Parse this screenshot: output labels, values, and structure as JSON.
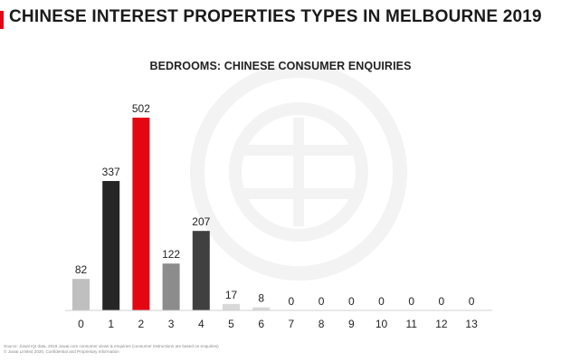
{
  "page": {
    "title": "CHINESE INTEREST PROPERTIES TYPES IN MELBOURNE 2019",
    "accent_color": "#e30613"
  },
  "footer": {
    "source": "Source: Juwai IQI data, 2019 Juwai.com consumer views & enquiries (consumer instructions are based on enquiries)",
    "copyright": "© Juwai Limited 2020. Confidential and Proprietary Information"
  },
  "watermark": {
    "icon": "juwai-logo-watermark"
  },
  "chart_data": {
    "type": "bar",
    "title": "BEDROOMS: CHINESE CONSUMER ENQUIRIES",
    "xlabel": "",
    "ylabel": "",
    "categories": [
      "0",
      "1",
      "2",
      "3",
      "4",
      "5",
      "6",
      "7",
      "8",
      "9",
      "10",
      "11",
      "12",
      "13"
    ],
    "values": [
      82,
      337,
      502,
      122,
      207,
      17,
      8,
      0,
      0,
      0,
      0,
      0,
      0,
      0
    ],
    "colors": [
      "#bfbfbf",
      "#262626",
      "#e30613",
      "#8c8c8c",
      "#404040",
      "#d9d9d9",
      "#d9d9d9",
      "#d9d9d9",
      "#d9d9d9",
      "#d9d9d9",
      "#d9d9d9",
      "#d9d9d9",
      "#d9d9d9",
      "#d9d9d9"
    ],
    "ylim": [
      0,
      502
    ],
    "grid": false,
    "legend": "none"
  }
}
